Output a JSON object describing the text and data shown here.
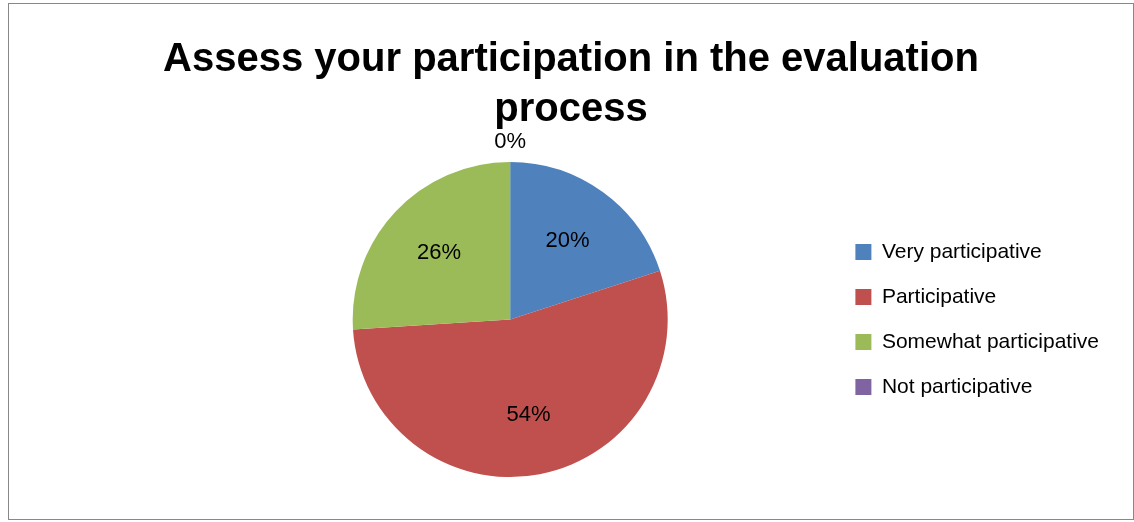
{
  "chart_data": {
    "type": "pie",
    "title": "Assess your participation in the evaluation process",
    "categories": [
      "Very participative",
      "Participative",
      "Somewhat participative",
      "Not participative"
    ],
    "values": [
      20,
      54,
      26,
      0
    ],
    "colors": [
      "#4f81bd",
      "#c0504d",
      "#9bbb59",
      "#8064a2"
    ],
    "value_labels": [
      "20%",
      "54%",
      "26%",
      "0%"
    ],
    "legend": "right"
  }
}
